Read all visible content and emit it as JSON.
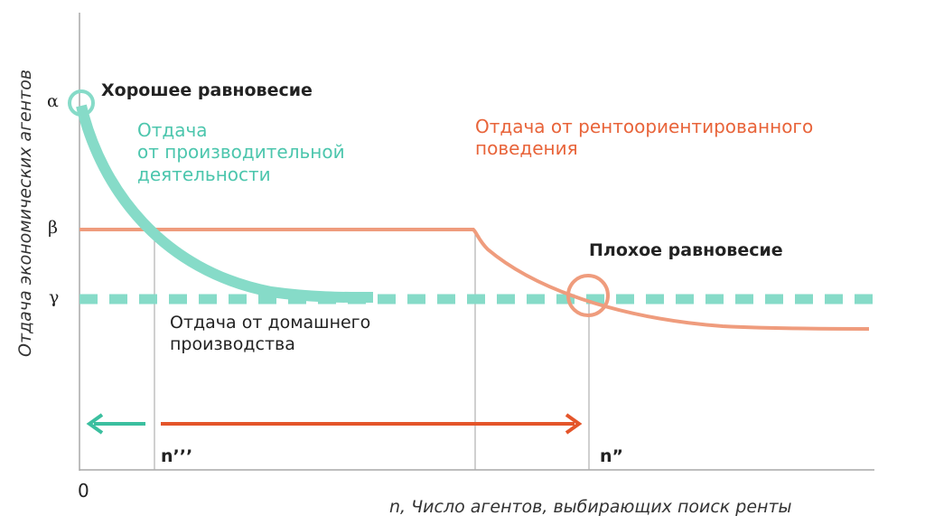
{
  "axes": {
    "y_label": "Отдача экономических агентов",
    "x_label": "n, Число агентов, выбирающих поиск ренты",
    "origin_label": "0",
    "y_ticks": [
      "α",
      "β",
      "γ"
    ]
  },
  "labels": {
    "good_equilibrium": "Хорошее равновесие",
    "bad_equilibrium": "Плохое равновесие",
    "productive_return": [
      "Отдача",
      "от производительной",
      "деятельности"
    ],
    "rent_seeking_return": [
      "Отдача от рентоориентированного",
      "поведения"
    ],
    "home_production_return": [
      "Отдача от домашнего",
      "производства"
    ],
    "n_triple_prime": "n’’’",
    "n_double_prime": "n”"
  },
  "colors": {
    "teal": "#86dbc8",
    "teal_text": "#4cc6ad",
    "teal_arrow": "#3bbf9f",
    "orange_line": "#ef9c7d",
    "orange_text": "#e8643a",
    "orange_arrow": "#e4552a",
    "axis": "#9a9a9a"
  }
}
